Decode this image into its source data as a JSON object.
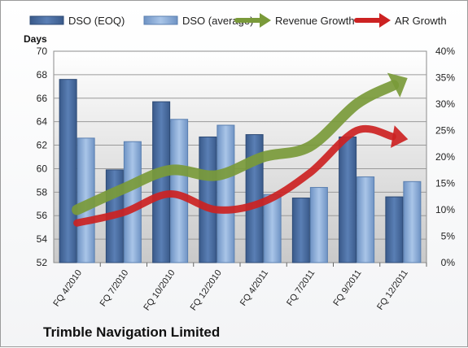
{
  "company": "Trimble Navigation Limited",
  "chart_data": {
    "type": "bar",
    "categories": [
      "FQ 4/2010",
      "FQ 7/2010",
      "FQ 10/2010",
      "FQ 12/2010",
      "FQ 4/2011",
      "FQ 7/2011",
      "FQ 9/2011",
      "FQ 12/2011"
    ],
    "ylabel": "Days",
    "ylim": [
      52,
      70
    ],
    "yticks": [
      52,
      54,
      56,
      58,
      60,
      62,
      64,
      66,
      68,
      70
    ],
    "y2lim": [
      0,
      40
    ],
    "y2ticks": [
      "0%",
      "5%",
      "10%",
      "15%",
      "20%",
      "25%",
      "30%",
      "35%",
      "40%"
    ],
    "grid": true,
    "legend_position": "top",
    "series": [
      {
        "name": "DSO (EOQ)",
        "kind": "bar",
        "axis": "left",
        "color": "#4a6b9c",
        "values": [
          67.6,
          59.9,
          65.7,
          62.7,
          62.9,
          57.5,
          62.7,
          57.6
        ]
      },
      {
        "name": "DSO (average)",
        "kind": "bar",
        "axis": "left",
        "color": "#8fb0da",
        "values": [
          62.6,
          62.3,
          64.2,
          63.7,
          57.8,
          58.4,
          59.3,
          58.9
        ]
      },
      {
        "name": "Revenue Growth",
        "kind": "arrow-line",
        "axis": "right",
        "color": "#7a9a3a",
        "values": [
          10,
          14,
          17.5,
          16.5,
          20,
          22,
          30,
          34.5
        ]
      },
      {
        "name": "AR Growth",
        "kind": "arrow-line",
        "axis": "right",
        "color": "#cc2222",
        "values": [
          7.5,
          9.5,
          13,
          10,
          11.5,
          17,
          25,
          23.5
        ]
      }
    ]
  }
}
